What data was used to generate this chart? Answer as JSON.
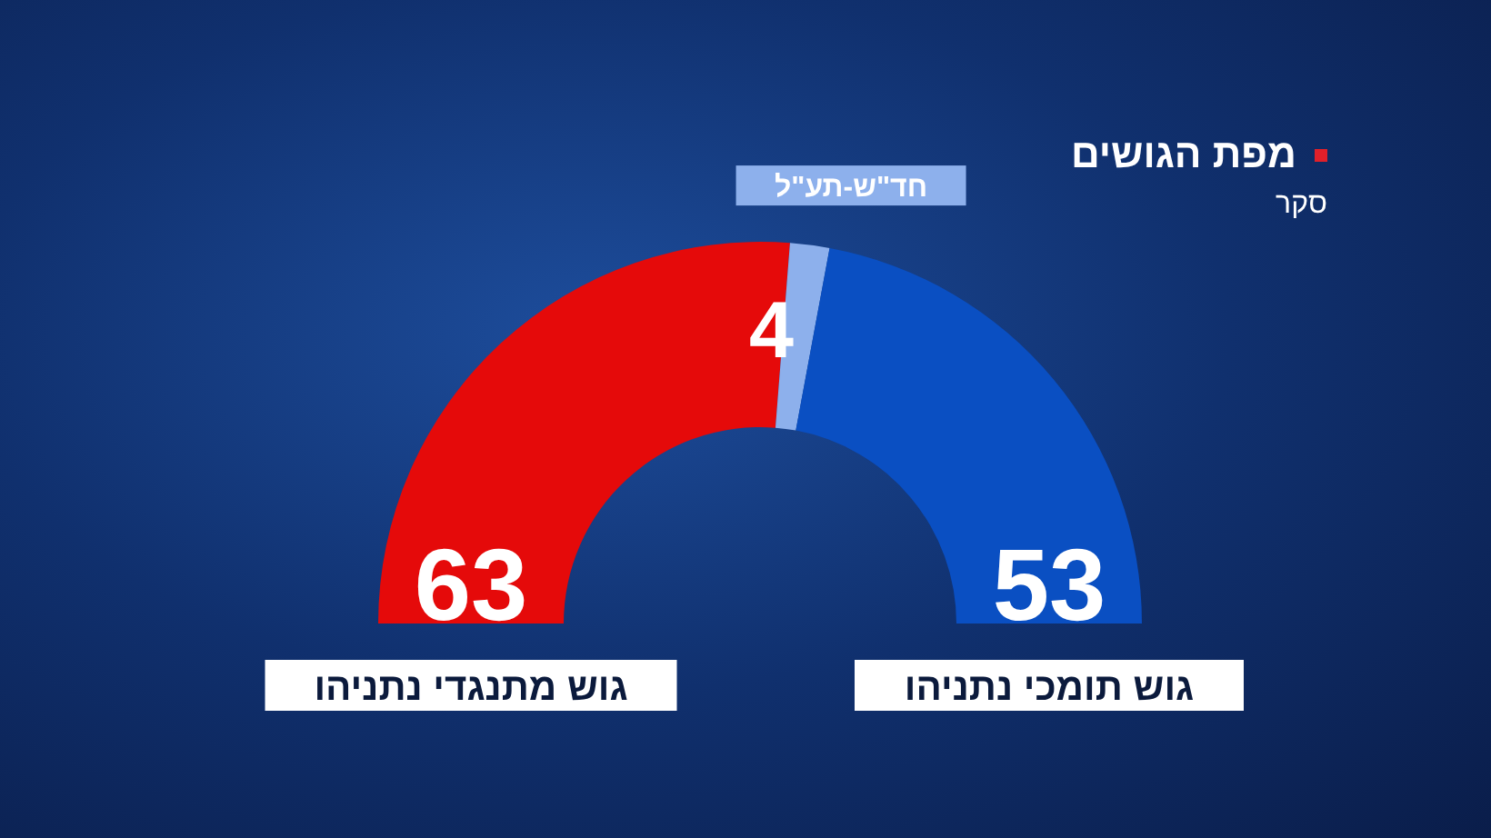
{
  "chart_data": {
    "type": "donut",
    "title": "מפת הגושים",
    "subtitle": "סקר",
    "categories": [
      "גוש מתנגדי נתניהו",
      "חד\"ש-תע\"ל",
      "גוש תומכי נתניהו"
    ],
    "values": [
      63,
      4,
      53
    ],
    "colors": [
      "#e50a0a",
      "#8db0ec",
      "#0a4fc2"
    ],
    "data_labels": true
  }
}
